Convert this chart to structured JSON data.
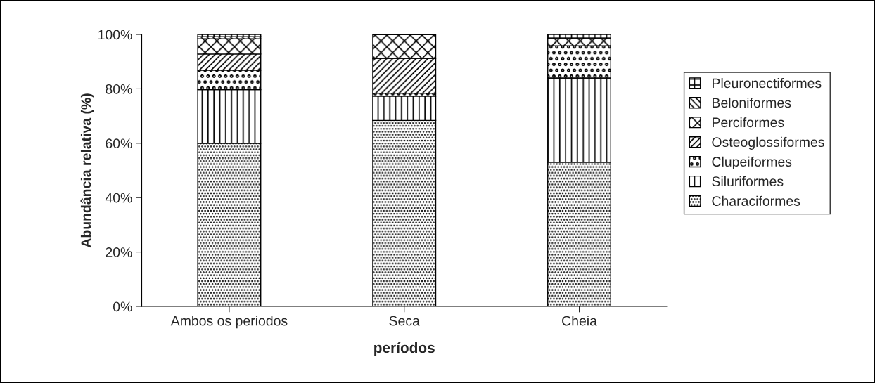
{
  "chart_data": {
    "type": "bar",
    "stacked": true,
    "xlabel": "períodos",
    "ylabel": "Abundância relativa (%)",
    "categories": [
      "Ambos os periodos",
      "Seca",
      "Cheia"
    ],
    "series": [
      {
        "name": "Characiformes",
        "color": "#000000",
        "values": [
          60,
          68.4,
          53
        ]
      },
      {
        "name": "Siluriformes",
        "color": "#000000",
        "values": [
          19.7,
          8.9,
          31
        ]
      },
      {
        "name": "Clupeiformes",
        "color": "#000000",
        "values": [
          7.2,
          1.1,
          11.8
        ]
      },
      {
        "name": "Osteoglossiformes",
        "color": "#000000",
        "values": [
          5.9,
          12.8,
          0
        ]
      },
      {
        "name": "Perciformes",
        "color": "#000000",
        "values": [
          5.6,
          8.8,
          2.7
        ]
      },
      {
        "name": "Beloniformes",
        "color": "#000000",
        "values": [
          0.8,
          0,
          0
        ]
      },
      {
        "name": "Pleuronectiformes",
        "color": "#000000",
        "values": [
          0.8,
          0,
          1.5
        ]
      }
    ],
    "ylim": [
      0,
      100
    ],
    "yticks": [
      {
        "value": 0,
        "label": "0%"
      },
      {
        "value": 20,
        "label": "20%"
      },
      {
        "value": 40,
        "label": "40%"
      },
      {
        "value": 60,
        "label": "60%"
      },
      {
        "value": 80,
        "label": "80%"
      },
      {
        "value": 100,
        "label": "100%"
      }
    ],
    "grid": false,
    "legend": "right"
  }
}
